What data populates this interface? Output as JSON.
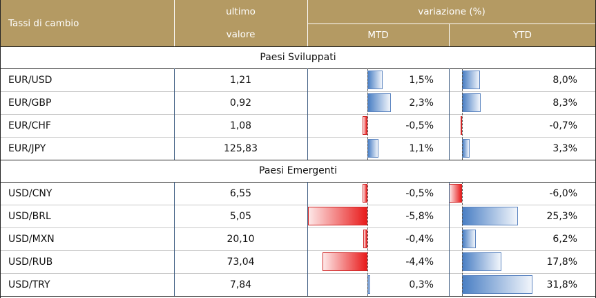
{
  "header": {
    "col1": "Tassi di cambio",
    "col2_line1": "ultimo",
    "col2_line2": "valore",
    "group": "variazione (%)",
    "mtd": "MTD",
    "ytd": "YTD"
  },
  "sections": [
    {
      "title": "Paesi Sviluppati",
      "rows": [
        {
          "pair": "EUR/USD",
          "value": "1,21",
          "mtd": 1.5,
          "mtd_label": "1,5%",
          "ytd": 8.0,
          "ytd_label": "8,0%"
        },
        {
          "pair": "EUR/GBP",
          "value": "0,92",
          "mtd": 2.3,
          "mtd_label": "2,3%",
          "ytd": 8.3,
          "ytd_label": "8,3%"
        },
        {
          "pair": "EUR/CHF",
          "value": "1,08",
          "mtd": -0.5,
          "mtd_label": "-0,5%",
          "ytd": -0.7,
          "ytd_label": "-0,7%"
        },
        {
          "pair": "EUR/JPY",
          "value": "125,83",
          "mtd": 1.1,
          "mtd_label": "1,1%",
          "ytd": 3.3,
          "ytd_label": "3,3%"
        }
      ]
    },
    {
      "title": "Paesi Emergenti",
      "rows": [
        {
          "pair": "USD/CNY",
          "value": "6,55",
          "mtd": -0.5,
          "mtd_label": "-0,5%",
          "ytd": -6.0,
          "ytd_label": "-6,0%"
        },
        {
          "pair": "USD/BRL",
          "value": "5,05",
          "mtd": -5.8,
          "mtd_label": "-5,8%",
          "ytd": 25.3,
          "ytd_label": "25,3%"
        },
        {
          "pair": "USD/MXN",
          "value": "20,10",
          "mtd": -0.4,
          "mtd_label": "-0,4%",
          "ytd": 6.2,
          "ytd_label": "6,2%"
        },
        {
          "pair": "USD/RUB",
          "value": "73,04",
          "mtd": -4.4,
          "mtd_label": "-4,4%",
          "ytd": 17.8,
          "ytd_label": "17,8%"
        },
        {
          "pair": "USD/TRY",
          "value": "7,84",
          "mtd": 0.3,
          "mtd_label": "0,3%",
          "ytd": 31.8,
          "ytd_label": "31,8%"
        }
      ]
    }
  ],
  "colors": {
    "header_bg": "#b49a63",
    "positive_bar": "#4a7fc4",
    "negative_bar": "#e81b1b"
  },
  "chart_data": {
    "type": "table",
    "columns": [
      "Tassi di cambio",
      "ultimo valore",
      "MTD",
      "YTD"
    ],
    "series": [
      {
        "name": "MTD",
        "values": [
          1.5,
          2.3,
          -0.5,
          1.1,
          -0.5,
          -5.8,
          -0.4,
          -4.4,
          0.3
        ]
      },
      {
        "name": "YTD",
        "values": [
          8.0,
          8.3,
          -0.7,
          3.3,
          -6.0,
          25.3,
          6.2,
          17.8,
          31.8
        ]
      }
    ],
    "categories": [
      "EUR/USD",
      "EUR/GBP",
      "EUR/CHF",
      "EUR/JPY",
      "USD/CNY",
      "USD/BRL",
      "USD/MXN",
      "USD/RUB",
      "USD/TRY"
    ]
  }
}
